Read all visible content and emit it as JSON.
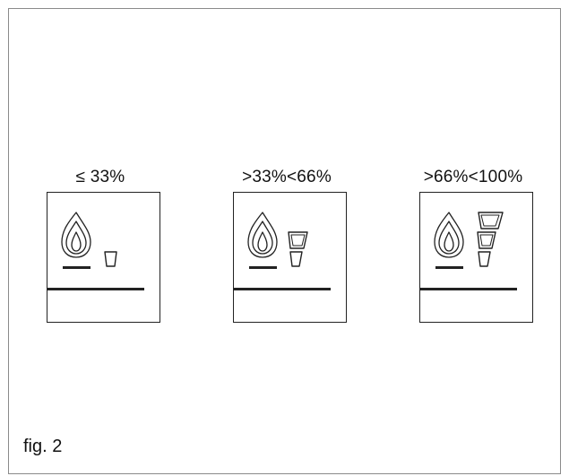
{
  "panels": [
    {
      "label": "≤  33%",
      "level_segments": 1
    },
    {
      "label": ">33%<66%",
      "level_segments": 2
    },
    {
      "label": ">66%<100%",
      "level_segments": 3
    }
  ],
  "caption": "fig. 2",
  "icons": {
    "flame": "flame-icon",
    "level": "power-level-icon",
    "baseline": "display-baseline"
  }
}
